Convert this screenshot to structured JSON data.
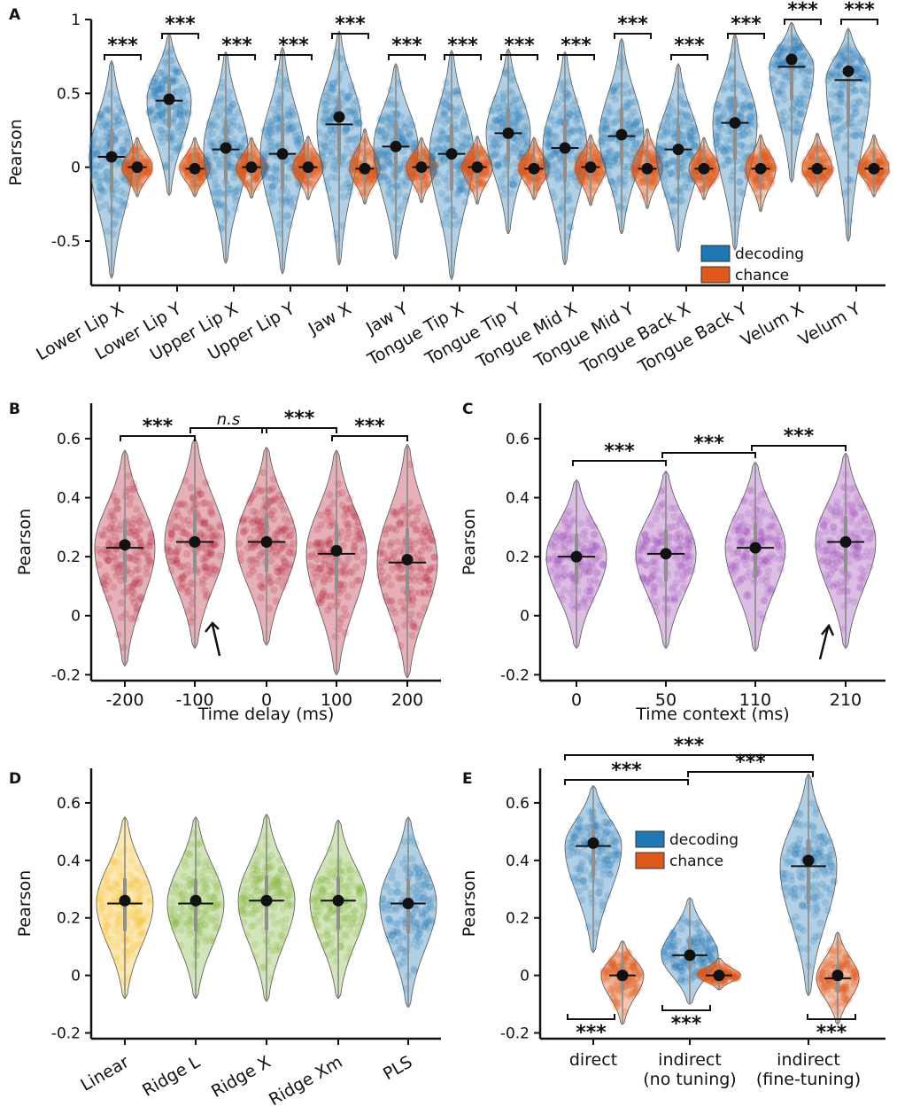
{
  "colors": {
    "decoding": "#1f77b4",
    "chance": "#e0581b",
    "delay": "#b41e34",
    "context": "#9a46b5",
    "linear": "#f5bd25",
    "ridge": "#7db139",
    "pls": "#1f77b4"
  },
  "chart_data": [
    {
      "panel": "A",
      "type": "violin",
      "ylabel": "Pearson",
      "ylim": [
        -0.8,
        1.0
      ],
      "yticks": [
        1,
        0.5,
        0,
        -0.5
      ],
      "ytick_labels": [
        "1",
        "0.5",
        "0",
        "-0.5"
      ],
      "categories": [
        "Lower Lip X",
        "Lower Lip Y",
        "Upper Lip X",
        "Upper Lip Y",
        "Jaw X",
        "Jaw Y",
        "Tongue Tip X",
        "Tongue Tip Y",
        "Tongue Mid X",
        "Tongue Mid Y",
        "Tongue Back X",
        "Tongue Back Y",
        "Velum X",
        "Velum Y"
      ],
      "legend": [
        "decoding",
        "chance"
      ],
      "legend_position": "bottom-right",
      "series": [
        {
          "name": "decoding",
          "mean": [
            0.07,
            0.46,
            0.13,
            0.09,
            0.34,
            0.14,
            0.09,
            0.23,
            0.13,
            0.22,
            0.12,
            0.3,
            0.73,
            0.65
          ],
          "median": [
            0.07,
            0.45,
            0.12,
            0.09,
            0.29,
            0.14,
            0.09,
            0.23,
            0.13,
            0.21,
            0.12,
            0.3,
            0.68,
            0.59
          ],
          "min": [
            -0.75,
            -0.19,
            -0.65,
            -0.72,
            -0.66,
            -0.62,
            -0.76,
            -0.45,
            -0.66,
            -0.45,
            -0.57,
            -0.56,
            -0.1,
            -0.5
          ],
          "max": [
            0.72,
            0.9,
            0.78,
            0.81,
            0.92,
            0.7,
            0.79,
            0.8,
            0.78,
            0.87,
            0.7,
            0.9,
            0.98,
            0.94
          ]
        },
        {
          "name": "chance",
          "mean": [
            0.0,
            -0.01,
            0.0,
            0.0,
            -0.01,
            0.0,
            0.0,
            -0.01,
            0.0,
            -0.01,
            -0.01,
            -0.01,
            -0.01,
            -0.01
          ],
          "median": [
            0.0,
            -0.01,
            0.0,
            0.0,
            -0.01,
            0.0,
            0.0,
            -0.01,
            0.0,
            -0.01,
            -0.01,
            -0.01,
            -0.01,
            -0.01
          ],
          "min": [
            -0.2,
            -0.2,
            -0.21,
            -0.22,
            -0.25,
            -0.24,
            -0.25,
            -0.22,
            -0.26,
            -0.28,
            -0.22,
            -0.3,
            -0.2,
            -0.2
          ],
          "max": [
            0.2,
            0.2,
            0.2,
            0.21,
            0.26,
            0.2,
            0.21,
            0.2,
            0.22,
            0.26,
            0.2,
            0.22,
            0.23,
            0.22
          ]
        }
      ],
      "annotations": [
        "***",
        "***",
        "***",
        "***",
        "***",
        "***",
        "***",
        "***",
        "***",
        "***",
        "***",
        "***",
        "***",
        "***"
      ]
    },
    {
      "panel": "B",
      "type": "violin",
      "ylabel": "Pearson",
      "xlabel": "Time delay (ms)",
      "ylim": [
        -0.22,
        0.72
      ],
      "yticks": [
        0.6,
        0.4,
        0.2,
        0,
        -0.2
      ],
      "ytick_labels": [
        "0.6",
        "0.4",
        "0.2",
        "0",
        "-0.2"
      ],
      "categories": [
        "-200",
        "-100",
        "0",
        "100",
        "200"
      ],
      "series": [
        {
          "name": "delay",
          "mean": [
            0.24,
            0.25,
            0.25,
            0.22,
            0.19
          ],
          "median": [
            0.23,
            0.25,
            0.25,
            0.21,
            0.18
          ],
          "min": [
            -0.17,
            -0.11,
            -0.1,
            -0.2,
            -0.21
          ],
          "max": [
            0.56,
            0.6,
            0.57,
            0.56,
            0.58
          ]
        }
      ],
      "comparisons": [
        {
          "from": 0,
          "to": 1,
          "label": "***"
        },
        {
          "from": 1,
          "to": 2,
          "label": "n.s"
        },
        {
          "from": 2,
          "to": 3,
          "label": "***"
        },
        {
          "from": 3,
          "to": 4,
          "label": "***"
        }
      ],
      "arrow_at": "-100"
    },
    {
      "panel": "C",
      "type": "violin",
      "ylabel": "Pearson",
      "xlabel": "Time context (ms)",
      "ylim": [
        -0.22,
        0.72
      ],
      "yticks": [
        0.6,
        0.4,
        0.2,
        0,
        -0.2
      ],
      "ytick_labels": [
        "0.6",
        "0.4",
        "0.2",
        "0",
        "-0.2"
      ],
      "categories": [
        "0",
        "50",
        "110",
        "210"
      ],
      "series": [
        {
          "name": "context",
          "mean": [
            0.2,
            0.21,
            0.23,
            0.25
          ],
          "median": [
            0.2,
            0.21,
            0.23,
            0.25
          ],
          "min": [
            -0.11,
            -0.11,
            -0.12,
            -0.11
          ],
          "max": [
            0.46,
            0.49,
            0.52,
            0.55
          ]
        }
      ],
      "comparisons": [
        {
          "from": 0,
          "to": 1,
          "label": "***"
        },
        {
          "from": 1,
          "to": 2,
          "label": "***"
        },
        {
          "from": 2,
          "to": 3,
          "label": "***"
        }
      ],
      "arrow_at": "210"
    },
    {
      "panel": "D",
      "type": "violin",
      "ylabel": "Pearson",
      "ylim": [
        -0.22,
        0.72
      ],
      "yticks": [
        0.6,
        0.4,
        0.2,
        0,
        -0.2
      ],
      "ytick_labels": [
        "0.6",
        "0.4",
        "0.2",
        "0",
        "-0.2"
      ],
      "categories": [
        "Linear",
        "Ridge L",
        "Ridge X",
        "Ridge Xm",
        "PLS"
      ],
      "series": [
        {
          "name": "model",
          "mean": [
            0.26,
            0.26,
            0.26,
            0.26,
            0.25
          ],
          "median": [
            0.25,
            0.25,
            0.26,
            0.26,
            0.25
          ],
          "min": [
            -0.08,
            -0.08,
            -0.09,
            -0.08,
            -0.11
          ],
          "max": [
            0.55,
            0.55,
            0.56,
            0.54,
            0.55
          ]
        }
      ]
    },
    {
      "panel": "E",
      "type": "violin",
      "ylabel": "Pearson",
      "ylim": [
        -0.22,
        0.72
      ],
      "yticks": [
        0.6,
        0.4,
        0.2,
        0,
        -0.2
      ],
      "ytick_labels": [
        "0.6",
        "0.4",
        "0.2",
        "0",
        "-0.2"
      ],
      "categories": [
        "direct",
        "indirect\n(no tuning)",
        "indirect\n(fine-tuning)"
      ],
      "legend": [
        "decoding",
        "chance"
      ],
      "legend_position": "top-center",
      "series": [
        {
          "name": "decoding",
          "mean": [
            0.46,
            0.07,
            0.4
          ],
          "median": [
            0.45,
            0.07,
            0.38
          ],
          "min": [
            0.08,
            -0.1,
            -0.07
          ],
          "max": [
            0.66,
            0.27,
            0.7
          ]
        },
        {
          "name": "chance",
          "mean": [
            0.0,
            0.0,
            0.0
          ],
          "median": [
            0.0,
            0.0,
            -0.01
          ],
          "min": [
            -0.17,
            -0.05,
            -0.17
          ],
          "max": [
            0.12,
            0.06,
            0.15
          ]
        }
      ],
      "comparisons_top": [
        {
          "from": 0,
          "to": 2,
          "label": "***"
        },
        {
          "from": 0,
          "to": 1,
          "label": "***"
        },
        {
          "from": 1,
          "to": 2,
          "label": "***"
        }
      ],
      "comparisons_bottom": [
        "***",
        "***",
        "***"
      ]
    }
  ]
}
